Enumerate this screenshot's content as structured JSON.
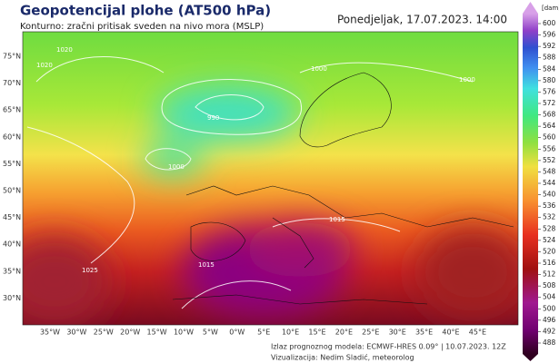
{
  "header": {
    "title": "Geopotencijal plohe (AT500 hPa)",
    "subtitle": "Konturno: zračni pritisak sveden na nivo mora (MSLP)",
    "datetime": "Ponedjeljak, 17.07.2023. 14:00"
  },
  "colorbar": {
    "unit": "[dam]",
    "ticks": [
      600,
      596,
      592,
      588,
      584,
      580,
      576,
      572,
      568,
      564,
      560,
      556,
      552,
      548,
      544,
      540,
      536,
      532,
      528,
      524,
      520,
      516,
      512,
      508,
      504,
      500,
      496,
      492,
      488
    ]
  },
  "map": {
    "lat_labels": [
      "75°N",
      "70°N",
      "65°N",
      "60°N",
      "55°N",
      "50°N",
      "45°N",
      "40°N",
      "35°N",
      "30°N"
    ],
    "lon_labels": [
      "35°W",
      "30°W",
      "25°W",
      "20°W",
      "15°W",
      "10°W",
      "5°W",
      "0°W",
      "5°E",
      "10°E",
      "15°E",
      "20°E",
      "25°E",
      "30°E",
      "35°E",
      "40°E",
      "45°E"
    ],
    "contour_labels": [
      "1020",
      "1020",
      "1000",
      "990",
      "1000",
      "1000",
      "1015",
      "1015",
      "1025"
    ]
  },
  "footer": {
    "model": "Izlaz prognoznog modela: ECMWF-HRES 0.09° | 10.07.2023. 12Z",
    "credit": "Vizualizacija: Nedim Sladić, meteorolog"
  }
}
